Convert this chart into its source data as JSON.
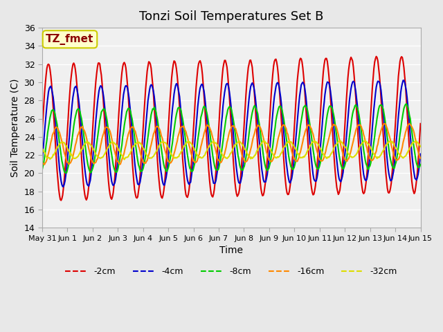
{
  "title": "Tonzi Soil Temperatures Set B",
  "xlabel": "Time",
  "ylabel": "Soil Temperature (C)",
  "annotation_text": "TZ_fmet",
  "annotation_bg": "#ffffcc",
  "annotation_border": "#cccc00",
  "annotation_text_color": "#8b0000",
  "ylim": [
    14,
    36
  ],
  "yticks": [
    14,
    16,
    18,
    20,
    22,
    24,
    26,
    28,
    30,
    32,
    34,
    36
  ],
  "bg_color": "#e8e8e8",
  "plot_bg_color": "#f0f0f0",
  "grid_color": "#ffffff",
  "series": [
    {
      "label": "-2cm",
      "color": "#dd0000",
      "lw": 1.5
    },
    {
      "label": "-4cm",
      "color": "#0000cc",
      "lw": 1.5
    },
    {
      "label": "-8cm",
      "color": "#00cc00",
      "lw": 1.5
    },
    {
      "label": "-16cm",
      "color": "#ff8800",
      "lw": 1.5
    },
    {
      "label": "-32cm",
      "color": "#dddd00",
      "lw": 1.5
    }
  ],
  "x_tick_labels": [
    "May 31",
    "Jun 1",
    "Jun 2",
    "Jun 3",
    "Jun 4",
    "Jun 5",
    "Jun 6",
    "Jun 7",
    "Jun 8",
    "Jun 9",
    "Jun 10",
    "Jun 11",
    "Jun 12",
    "Jun 13",
    "Jun 14",
    "Jun 15"
  ],
  "x_tick_positions": [
    0,
    1,
    2,
    3,
    4,
    5,
    6,
    7,
    8,
    9,
    10,
    11,
    12,
    13,
    14,
    15
  ],
  "n_points": 480,
  "period": 1.0,
  "depths_params": [
    {
      "mean": 24.5,
      "amp": 7.5,
      "phase": 0.0,
      "trend": 0.06
    },
    {
      "mean": 24.0,
      "amp": 5.5,
      "phase": 0.08,
      "trend": 0.05
    },
    {
      "mean": 23.5,
      "amp": 3.5,
      "phase": 0.18,
      "trend": 0.04
    },
    {
      "mean": 23.0,
      "amp": 2.0,
      "phase": 0.32,
      "trend": 0.03
    },
    {
      "mean": 22.5,
      "amp": 0.9,
      "phase": 0.55,
      "trend": 0.01
    }
  ]
}
